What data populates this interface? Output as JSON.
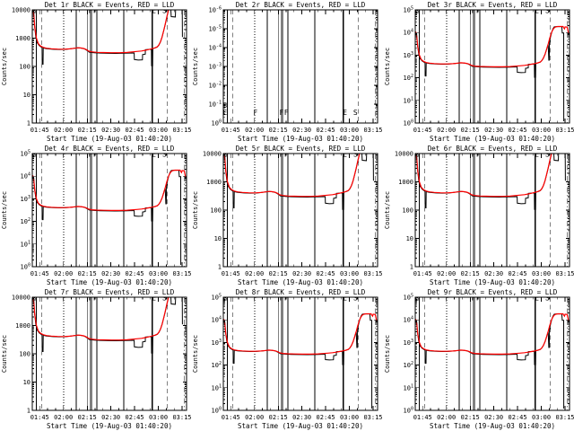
{
  "colors": {
    "background": "#ffffff",
    "axis": "#000000",
    "events_series": "#000000",
    "lld_series": "#ff0000"
  },
  "chart_data": {
    "type": "line",
    "layout": {
      "rows": 3,
      "cols": 3
    },
    "xlabel": "Start Time (19-Aug-03 01:40:20)",
    "ylabel": "Counts/sec",
    "legend_note": "BLACK = Events, RED = LLD",
    "x_range_minutes": [
      0,
      97.5
    ],
    "x_ticks": [
      {
        "t": 4.67,
        "label": "01:45"
      },
      {
        "t": 19.67,
        "label": "02:00"
      },
      {
        "t": 34.67,
        "label": "02:15"
      },
      {
        "t": 49.67,
        "label": "02:30"
      },
      {
        "t": 64.67,
        "label": "02:45"
      },
      {
        "t": 79.67,
        "label": "03:00"
      },
      {
        "t": 94.67,
        "label": "03:15"
      }
    ],
    "x_minor_step_minutes": 5,
    "vlines": [
      {
        "t": 2.6,
        "style": "solid"
      },
      {
        "t": 6.1,
        "style": "dashed"
      },
      {
        "t": 19.8,
        "style": "dotted"
      },
      {
        "t": 27.8,
        "style": "solid"
      },
      {
        "t": 35.0,
        "style": "solid"
      },
      {
        "t": 36.7,
        "style": "solid"
      },
      {
        "t": 37.4,
        "style": "solid"
      },
      {
        "t": 40.8,
        "style": "solid"
      },
      {
        "t": 57.8,
        "style": "solid"
      },
      {
        "t": 75.6,
        "style": "solid"
      },
      {
        "t": 76.4,
        "style": "solid"
      },
      {
        "t": 85.5,
        "style": "dashed"
      },
      {
        "t": 96.2,
        "style": "dashdot"
      }
    ],
    "flags": [
      {
        "t": 1.0,
        "ch": "S",
        "row": 2
      },
      {
        "t": 1.0,
        "ch": "E",
        "row": 1
      },
      {
        "t": 20.3,
        "ch": "F",
        "row": 1
      },
      {
        "t": 36.8,
        "ch": "F",
        "row": 1
      },
      {
        "t": 39.8,
        "ch": "F",
        "row": 1
      },
      {
        "t": 76.8,
        "ch": "E",
        "row": 1
      },
      {
        "t": 83.5,
        "ch": "S",
        "row": 1
      }
    ],
    "profiles": {
      "A": {
        "ymax_decades": 4,
        "black": [
          [
            0.3,
            8500
          ],
          [
            0.9,
            8500
          ],
          [
            1.3,
            3200
          ],
          [
            2.2,
            1100
          ],
          [
            3.2,
            680
          ],
          [
            4.5,
            540
          ],
          [
            6.2,
            460
          ],
          [
            6.3,
            120
          ],
          [
            6.8,
            120
          ],
          [
            6.9,
            450
          ],
          [
            9,
            425
          ],
          [
            13,
            405
          ],
          [
            17,
            398
          ],
          [
            21,
            402
          ],
          [
            25,
            428
          ],
          [
            27.5,
            448
          ],
          [
            29,
            455
          ],
          [
            31,
            445
          ],
          [
            33,
            420
          ],
          [
            34.5,
            370
          ],
          [
            36,
            320
          ],
          [
            39,
            305
          ],
          [
            43,
            297
          ],
          [
            48,
            290
          ],
          [
            53,
            288
          ],
          [
            58,
            292
          ],
          [
            62,
            298
          ],
          [
            64.4,
            300
          ],
          [
            64.5,
            175
          ],
          [
            67,
            168
          ],
          [
            69.6,
            172
          ],
          [
            69.7,
            262
          ],
          [
            71.4,
            272
          ],
          [
            71.5,
            392
          ],
          [
            74,
            400
          ],
          [
            75.3,
            402
          ],
          [
            75.4,
            105
          ],
          [
            75.8,
            105
          ],
          [
            75.9,
            432
          ],
          [
            77.5,
            448
          ],
          [
            79,
            490
          ],
          [
            80,
            565
          ],
          [
            81,
            730
          ],
          [
            82,
            1080
          ],
          [
            83,
            1750
          ],
          [
            84,
            3000
          ],
          [
            85,
            5300
          ],
          [
            86,
            9200
          ],
          [
            86.4,
            10500
          ],
          [
            87.6,
            10500
          ],
          [
            87.8,
            5800
          ],
          [
            90.4,
            5600
          ],
          [
            90.6,
            10500
          ],
          [
            94.8,
            10500
          ],
          [
            94.9,
            1100
          ]
        ],
        "red": [
          [
            0.3,
            11000
          ],
          [
            1.0,
            6200
          ],
          [
            1.6,
            2400
          ],
          [
            2.6,
            1000
          ],
          [
            3.8,
            640
          ],
          [
            5.2,
            530
          ],
          [
            7,
            470
          ],
          [
            9,
            442
          ],
          [
            12,
            422
          ],
          [
            16,
            410
          ],
          [
            20,
            407
          ],
          [
            24,
            418
          ],
          [
            27,
            442
          ],
          [
            28.8,
            458
          ],
          [
            30.5,
            450
          ],
          [
            32.5,
            432
          ],
          [
            34,
            400
          ],
          [
            35.5,
            352
          ],
          [
            37.5,
            328
          ],
          [
            41,
            316
          ],
          [
            45,
            310
          ],
          [
            50,
            305
          ],
          [
            55,
            305
          ],
          [
            60,
            312
          ],
          [
            63,
            324
          ],
          [
            66,
            338
          ],
          [
            69,
            352
          ],
          [
            71.5,
            372
          ],
          [
            73.5,
            396
          ],
          [
            75.5,
            422
          ],
          [
            77.5,
            455
          ],
          [
            79,
            495
          ],
          [
            80,
            580
          ],
          [
            81,
            745
          ],
          [
            82,
            1100
          ],
          [
            83,
            1800
          ],
          [
            84,
            3100
          ],
          [
            85,
            5500
          ],
          [
            86,
            9500
          ],
          [
            86.6,
            11000
          ],
          [
            97.4,
            11000
          ]
        ]
      },
      "B": {
        "ymax_decades": 5,
        "black": [
          [
            0.3,
            8500
          ],
          [
            0.9,
            8500
          ],
          [
            1.3,
            3200
          ],
          [
            2.2,
            1100
          ],
          [
            3.2,
            680
          ],
          [
            4.5,
            540
          ],
          [
            6.2,
            460
          ],
          [
            6.3,
            120
          ],
          [
            6.8,
            120
          ],
          [
            6.9,
            450
          ],
          [
            9,
            425
          ],
          [
            13,
            405
          ],
          [
            17,
            398
          ],
          [
            21,
            402
          ],
          [
            25,
            428
          ],
          [
            27.5,
            448
          ],
          [
            29,
            455
          ],
          [
            31,
            445
          ],
          [
            33,
            420
          ],
          [
            34.5,
            370
          ],
          [
            36,
            320
          ],
          [
            39,
            305
          ],
          [
            43,
            297
          ],
          [
            48,
            290
          ],
          [
            53,
            288
          ],
          [
            58,
            292
          ],
          [
            62,
            298
          ],
          [
            64.4,
            300
          ],
          [
            64.5,
            175
          ],
          [
            67,
            168
          ],
          [
            69.6,
            172
          ],
          [
            69.7,
            262
          ],
          [
            71.4,
            272
          ],
          [
            71.5,
            392
          ],
          [
            74,
            400
          ],
          [
            75.3,
            402
          ],
          [
            75.4,
            105
          ],
          [
            75.8,
            105
          ],
          [
            75.9,
            432
          ],
          [
            77.5,
            448
          ],
          [
            79,
            490
          ],
          [
            80,
            565
          ],
          [
            81,
            730
          ],
          [
            82,
            1080
          ],
          [
            83,
            1750
          ],
          [
            84,
            3000
          ],
          [
            84.4,
            600
          ],
          [
            84.7,
            600
          ],
          [
            84.8,
            3400
          ],
          [
            85.4,
            6000
          ],
          [
            86.2,
            10000
          ],
          [
            87,
            14500
          ],
          [
            87.8,
            17800
          ],
          [
            89,
            18300
          ],
          [
            92.6,
            18200
          ],
          [
            92.9,
            9500
          ],
          [
            93.8,
            9500
          ],
          [
            93.9,
            1.2
          ]
        ],
        "red": [
          [
            0.3,
            11000
          ],
          [
            1.0,
            6200
          ],
          [
            1.6,
            2400
          ],
          [
            2.6,
            1000
          ],
          [
            3.8,
            640
          ],
          [
            5.2,
            530
          ],
          [
            7,
            470
          ],
          [
            9,
            442
          ],
          [
            12,
            422
          ],
          [
            16,
            410
          ],
          [
            20,
            407
          ],
          [
            24,
            418
          ],
          [
            27,
            442
          ],
          [
            28.8,
            458
          ],
          [
            30.5,
            450
          ],
          [
            32.5,
            432
          ],
          [
            34,
            400
          ],
          [
            35.5,
            352
          ],
          [
            37.5,
            328
          ],
          [
            41,
            316
          ],
          [
            45,
            310
          ],
          [
            50,
            305
          ],
          [
            55,
            305
          ],
          [
            60,
            312
          ],
          [
            63,
            324
          ],
          [
            66,
            338
          ],
          [
            69,
            352
          ],
          [
            71.5,
            372
          ],
          [
            73.5,
            396
          ],
          [
            75.5,
            422
          ],
          [
            77.5,
            455
          ],
          [
            79,
            495
          ],
          [
            80,
            580
          ],
          [
            81,
            745
          ],
          [
            82,
            1100
          ],
          [
            83,
            1800
          ],
          [
            84,
            3100
          ],
          [
            85,
            5500
          ],
          [
            86,
            9500
          ],
          [
            86.8,
            12500
          ],
          [
            87.6,
            15500
          ],
          [
            88.6,
            17500
          ],
          [
            90,
            18500
          ],
          [
            93.4,
            18500
          ],
          [
            93.9,
            16000
          ],
          [
            94.3,
            14500
          ],
          [
            94.7,
            17800
          ],
          [
            96,
            17200
          ],
          [
            96.9,
            9000
          ]
        ]
      }
    },
    "panels": [
      {
        "id": "det-1",
        "title": "Det 1r BLACK = Events, RED = LLD",
        "ylabel": "Counts/sec",
        "yticks": [
          "10000",
          "1000",
          "100",
          "10",
          "1"
        ],
        "decades": 4,
        "profile": "A",
        "flags_at": "top"
      },
      {
        "id": "det-2",
        "title": "Det 2r BLACK = Events, RED = LLD",
        "ylabel": "Counts/sec",
        "yticks": [
          "10^-6",
          "10^-5",
          "10^-4",
          "10^-3",
          "10^-2",
          "10^-1",
          "10^0"
        ],
        "decades": 6,
        "profile": null,
        "flags_at": "bottom"
      },
      {
        "id": "det-3",
        "title": "Det 3r BLACK = Events, RED = LLD",
        "ylabel": "Counts/sec",
        "yticks": [
          "10^5",
          "10^4",
          "10^3",
          "10^2",
          "10^1",
          "10^0"
        ],
        "decades": 5,
        "profile": "B",
        "flags_at": "top"
      },
      {
        "id": "det-4",
        "title": "Det 4r BLACK = Events, RED = LLD",
        "ylabel": "Counts/sec",
        "yticks": [
          "10^5",
          "10^4",
          "10^3",
          "10^2",
          "10^1",
          "10^0"
        ],
        "decades": 5,
        "profile": "B",
        "flags_at": "top"
      },
      {
        "id": "det-5",
        "title": "Det 5r BLACK = Events, RED = LLD",
        "ylabel": "Counts/sec",
        "yticks": [
          "10000",
          "1000",
          "100",
          "10",
          "1"
        ],
        "decades": 4,
        "profile": "A",
        "flags_at": "top"
      },
      {
        "id": "det-6",
        "title": "Det 6r BLACK = Events, RED = LLD",
        "ylabel": "Counts/sec",
        "yticks": [
          "10000",
          "1000",
          "100",
          "10",
          "1"
        ],
        "decades": 4,
        "profile": "A",
        "flags_at": "top"
      },
      {
        "id": "det-7",
        "title": "Det 7r BLACK = Events, RED = LLD",
        "ylabel": "Counts/sec",
        "yticks": [
          "10000",
          "1000",
          "100",
          "10",
          "1"
        ],
        "decades": 4,
        "profile": "A",
        "flags_at": "top"
      },
      {
        "id": "det-8",
        "title": "Det 8r BLACK = Events, RED = LLD",
        "ylabel": "Counts/sec",
        "yticks": [
          "10^5",
          "10^4",
          "10^3",
          "10^2",
          "10^1",
          "10^0"
        ],
        "decades": 5,
        "profile": "B",
        "flags_at": "top"
      },
      {
        "id": "det-9",
        "title": "Det 9r BLACK = Events, RED = LLD",
        "ylabel": "Counts/sec",
        "yticks": [
          "10^5",
          "10^4",
          "10^3",
          "10^2",
          "10^1",
          "10^0"
        ],
        "decades": 5,
        "profile": "B",
        "flags_at": "top"
      }
    ]
  }
}
